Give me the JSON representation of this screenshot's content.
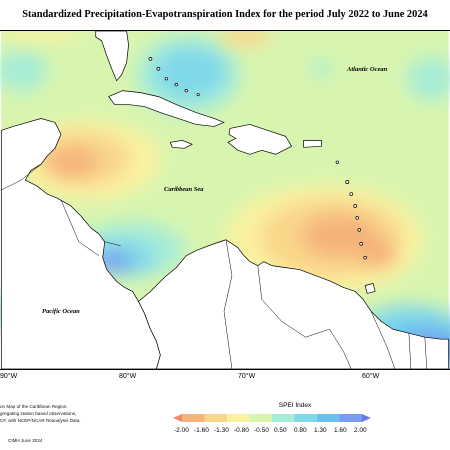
{
  "title": "Standardized Precipitation-Evapotranspiration Index for the period July 2022 to June 2024",
  "labels": {
    "atlantic": "Atlantic Ocean",
    "caribbean": "Caribbean Sea",
    "pacific": "Pacific Ocean"
  },
  "longitude_ticks": [
    "90°W",
    "80°W",
    "70°W",
    "60°W"
  ],
  "notes": {
    "line1": "on Map of the Caribbean Region.",
    "line2": "gregating station based observations,",
    "line3": "CF, with NCEP/NCAR Reanalysis Data.",
    "credit": "CIMH June 2024"
  },
  "legend": {
    "title": "SPEI Index",
    "ticks": [
      "-2.00",
      "-1.60",
      "-1.30",
      "-0.80",
      "-0.50",
      "0.50",
      "0.80",
      "1.30",
      "1.60",
      "2.00"
    ],
    "colors": [
      "#f08a6a",
      "#f5b27a",
      "#f9d68a",
      "#fbf2a0",
      "#d8f5b0",
      "#a6ecd8",
      "#7fd8ea",
      "#6cc0f0",
      "#7a9cf0",
      "#6a7ae8"
    ]
  },
  "colors": {
    "land": "#ffffff",
    "coast": "#000000",
    "neutral": "#d8f5b0"
  }
}
